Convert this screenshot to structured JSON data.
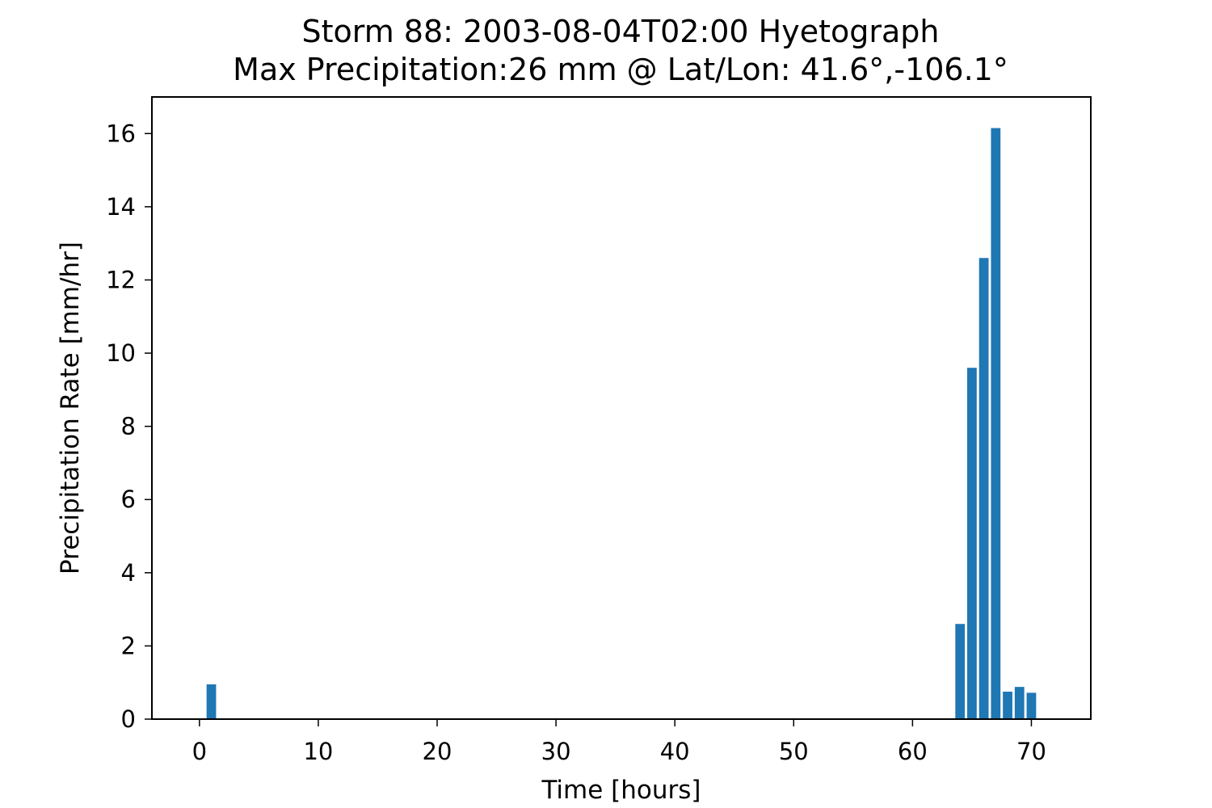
{
  "chart_data": {
    "type": "bar",
    "title": "Storm 88: 2003-08-04T02:00 Hyetograph",
    "subtitle": "Max Precipitation:26 mm @ Lat/Lon:  41.6°,-106.1°",
    "xlabel": "Time [hours]",
    "ylabel": "Precipitation Rate [mm/hr]",
    "xlim": [
      -4,
      75
    ],
    "ylim": [
      0,
      17
    ],
    "xticks": [
      0,
      10,
      20,
      30,
      40,
      50,
      60,
      70
    ],
    "yticks": [
      0,
      2,
      4,
      6,
      8,
      10,
      12,
      14,
      16
    ],
    "bar_width": 0.8,
    "grid": false,
    "bar_color": "#1f77b4",
    "x": [
      1,
      64,
      65,
      66,
      67,
      68,
      69,
      70
    ],
    "values": [
      0.95,
      2.6,
      9.6,
      12.6,
      16.15,
      0.75,
      0.88,
      0.72
    ]
  }
}
